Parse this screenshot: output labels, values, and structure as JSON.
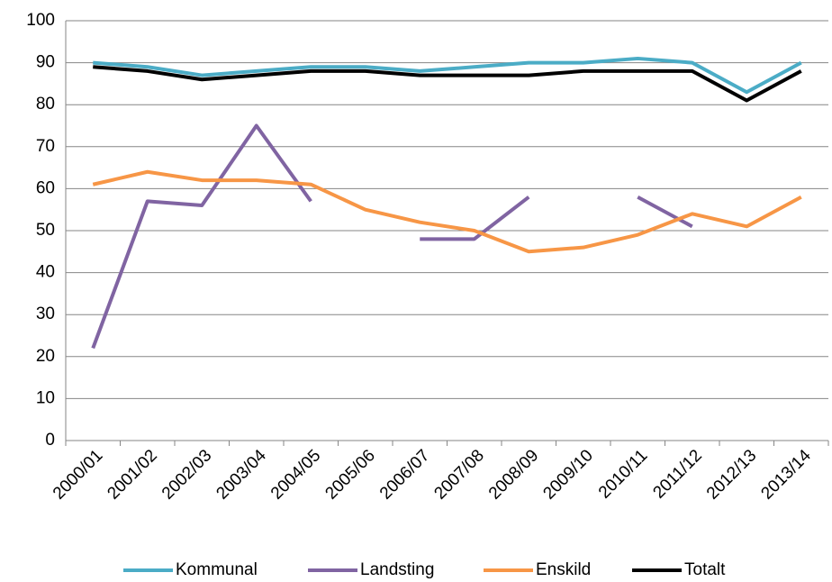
{
  "chart_data": {
    "type": "line",
    "categories": [
      "2000/01",
      "2001/02",
      "2002/03",
      "2003/04",
      "2004/05",
      "2005/06",
      "2006/07",
      "2007/08",
      "2008/09",
      "2009/10",
      "2010/11",
      "2011/12",
      "2012/13",
      "2013/14"
    ],
    "series": [
      {
        "name": "Kommunal",
        "color": "#4bacc6",
        "values": [
          90,
          89,
          87,
          88,
          89,
          89,
          88,
          89,
          90,
          90,
          91,
          90,
          83,
          90
        ]
      },
      {
        "name": "Landsting",
        "color": "#8064a2",
        "values": [
          22,
          57,
          56,
          75,
          57,
          null,
          48,
          48,
          58,
          null,
          58,
          51,
          null,
          null
        ]
      },
      {
        "name": "Enskild",
        "color": "#f79646",
        "values": [
          61,
          64,
          62,
          62,
          61,
          55,
          52,
          50,
          45,
          46,
          49,
          54,
          51,
          58
        ]
      },
      {
        "name": "Totalt",
        "color": "#000000",
        "values": [
          89,
          88,
          86,
          87,
          88,
          88,
          87,
          87,
          87,
          88,
          88,
          88,
          81,
          88
        ]
      }
    ],
    "ylim": [
      0,
      100
    ],
    "yticks": [
      0,
      10,
      20,
      30,
      40,
      50,
      60,
      70,
      80,
      90,
      100
    ],
    "grid": true,
    "legend": "bottom"
  }
}
